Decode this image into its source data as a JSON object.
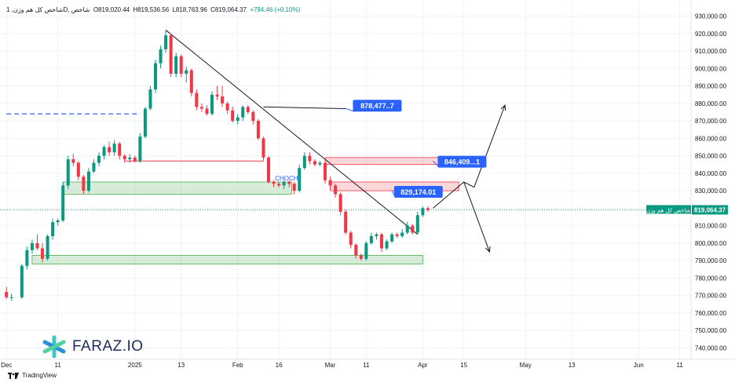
{
  "header": {
    "symbol": "شاخص کل هم وزن, 1D, شاخص",
    "open": "O819,020.44",
    "high": "H819,536.56",
    "low": "L818,763.96",
    "close": "C819,064.37",
    "change": "+794.46 (+0.10%)"
  },
  "branding": {
    "platform": "TradingView",
    "logo_text": "FARAZ.IO"
  },
  "colors": {
    "up": "#089981",
    "down": "#f23645",
    "trendline": "#131722",
    "callout": "#2962ff",
    "support_zone": "#4caf50",
    "resistance_zone": "#f23645"
  },
  "chart_data": {
    "type": "candlestick",
    "title": "شاخص کل هم وزن",
    "interval": "1D",
    "ylim": [
      733000,
      935000
    ],
    "y_ticks": [
      740000,
      750000,
      760000,
      770000,
      780000,
      790000,
      800000,
      810000,
      820000,
      830000,
      840000,
      850000,
      860000,
      870000,
      880000,
      890000,
      900000,
      910000,
      920000,
      930000
    ],
    "y_tick_labels": [
      "740,000.00",
      "750,000.00",
      "760,000.00",
      "770,000.00",
      "780,000.00",
      "790,000.00",
      "800,000.00",
      "810,000.00",
      "820,000.00",
      "830,000.00",
      "840,000.00",
      "850,000.00",
      "860,000.00",
      "870,000.00",
      "880,000.00",
      "890,000.00",
      "900,000.00",
      "910,000.00",
      "920,000.00",
      "930,000.00"
    ],
    "x_labels": [
      {
        "day": 0,
        "text": "Dec"
      },
      {
        "day": 10,
        "text": "11"
      },
      {
        "day": 25,
        "text": "2025"
      },
      {
        "day": 34,
        "text": "13"
      },
      {
        "day": 45,
        "text": "Feb"
      },
      {
        "day": 53,
        "text": "16"
      },
      {
        "day": 63,
        "text": "Mar"
      },
      {
        "day": 70,
        "text": "11"
      },
      {
        "day": 81,
        "text": "Apr"
      },
      {
        "day": 89,
        "text": "15"
      },
      {
        "day": 101,
        "text": "May"
      },
      {
        "day": 110,
        "text": "13"
      },
      {
        "day": 123,
        "text": "Jun"
      },
      {
        "day": 131,
        "text": "11"
      }
    ],
    "candles": [
      [
        0,
        772000,
        775000,
        768000,
        769000
      ],
      [
        1,
        769000,
        771000,
        767000,
        769000
      ],
      [
        3,
        769000,
        788000,
        768000,
        787000
      ],
      [
        4,
        787000,
        798000,
        785000,
        796000
      ],
      [
        5,
        796000,
        802000,
        794000,
        800000
      ],
      [
        6,
        800000,
        805000,
        796000,
        797000
      ],
      [
        7,
        797000,
        800000,
        789000,
        791000
      ],
      [
        8,
        791000,
        805000,
        790000,
        804000
      ],
      [
        9,
        804000,
        814000,
        802000,
        812000
      ],
      [
        10,
        812000,
        814000,
        810000,
        813000
      ],
      [
        11,
        813000,
        835000,
        812000,
        833000
      ],
      [
        12,
        833000,
        850000,
        831000,
        848000
      ],
      [
        13,
        848000,
        851000,
        844000,
        846000
      ],
      [
        14,
        846000,
        847000,
        836000,
        838000
      ],
      [
        15,
        838000,
        839000,
        828000,
        830000
      ],
      [
        16,
        830000,
        843000,
        829000,
        841000
      ],
      [
        17,
        841000,
        848000,
        840000,
        846000
      ],
      [
        18,
        846000,
        852000,
        844000,
        850000
      ],
      [
        19,
        850000,
        856000,
        848000,
        855000
      ],
      [
        20,
        855000,
        858000,
        850000,
        852000
      ],
      [
        21,
        852000,
        859000,
        850000,
        857000
      ],
      [
        22,
        857000,
        858000,
        848000,
        850000
      ],
      [
        23,
        850000,
        851000,
        846000,
        848000
      ],
      [
        24,
        848000,
        851000,
        846000,
        849000
      ],
      [
        25,
        849000,
        850000,
        846000,
        847000
      ],
      [
        26,
        847000,
        863000,
        846000,
        861000
      ],
      [
        27,
        861000,
        878000,
        860000,
        877000
      ],
      [
        28,
        877000,
        890000,
        876000,
        888000
      ],
      [
        29,
        888000,
        905000,
        886000,
        903000
      ],
      [
        30,
        903000,
        913000,
        900000,
        911000
      ],
      [
        31,
        911000,
        922000,
        909000,
        919000
      ],
      [
        32,
        919000,
        920000,
        895000,
        897000
      ],
      [
        33,
        897000,
        909000,
        895000,
        907000
      ],
      [
        34,
        907000,
        908000,
        895000,
        897000
      ],
      [
        35,
        897000,
        901000,
        892000,
        899000
      ],
      [
        36,
        899000,
        900000,
        884000,
        886000
      ],
      [
        37,
        886000,
        888000,
        876000,
        878000
      ],
      [
        38,
        878000,
        880000,
        875000,
        877000
      ],
      [
        39,
        877000,
        879000,
        873000,
        874000
      ],
      [
        40,
        874000,
        887000,
        873000,
        885000
      ],
      [
        41,
        885000,
        890000,
        882000,
        884000
      ],
      [
        42,
        884000,
        890000,
        878000,
        880000
      ],
      [
        43,
        880000,
        881000,
        874000,
        876000
      ],
      [
        44,
        876000,
        878000,
        869000,
        870000
      ],
      [
        45,
        870000,
        874000,
        868000,
        872000
      ],
      [
        46,
        872000,
        879000,
        870000,
        878000
      ],
      [
        47,
        878000,
        879000,
        874000,
        875000
      ],
      [
        48,
        875000,
        876000,
        868000,
        870000
      ],
      [
        49,
        870000,
        871000,
        859000,
        860000
      ],
      [
        50,
        860000,
        861000,
        847000,
        849000
      ],
      [
        51,
        849000,
        850000,
        834000,
        835000
      ],
      [
        52,
        835000,
        836000,
        832000,
        834000
      ],
      [
        53,
        834000,
        835000,
        832000,
        833000
      ],
      [
        54,
        833000,
        836000,
        831000,
        835000
      ],
      [
        55,
        835000,
        836000,
        832000,
        834000
      ],
      [
        56,
        834000,
        835000,
        828000,
        830000
      ],
      [
        57,
        830000,
        845000,
        829000,
        843000
      ],
      [
        58,
        843000,
        852000,
        842000,
        850000
      ],
      [
        59,
        850000,
        852000,
        845000,
        847000
      ],
      [
        60,
        847000,
        848000,
        844000,
        845000
      ],
      [
        61,
        845000,
        847000,
        844000,
        846000
      ],
      [
        62,
        846000,
        847000,
        834000,
        836000
      ],
      [
        63,
        836000,
        838000,
        831000,
        833000
      ],
      [
        64,
        833000,
        834000,
        826000,
        828000
      ],
      [
        65,
        828000,
        829000,
        816000,
        818000
      ],
      [
        66,
        818000,
        819000,
        805000,
        806000
      ],
      [
        67,
        806000,
        807000,
        797000,
        799000
      ],
      [
        68,
        799000,
        800000,
        791000,
        793000
      ],
      [
        69,
        793000,
        794000,
        790000,
        791000
      ],
      [
        70,
        791000,
        801000,
        790000,
        800000
      ],
      [
        71,
        800000,
        806000,
        799000,
        804000
      ],
      [
        72,
        804000,
        806000,
        802000,
        805000
      ],
      [
        73,
        805000,
        806000,
        795000,
        797000
      ],
      [
        74,
        797000,
        802000,
        796000,
        801000
      ],
      [
        75,
        801000,
        806000,
        800000,
        805000
      ],
      [
        76,
        805000,
        806000,
        803000,
        804000
      ],
      [
        77,
        804000,
        808000,
        803000,
        806000
      ],
      [
        78,
        806000,
        812000,
        805000,
        810000
      ],
      [
        79,
        810000,
        811000,
        805000,
        806000
      ],
      [
        80,
        806000,
        818000,
        805000,
        816000
      ],
      [
        81,
        816000,
        821000,
        815000,
        820000
      ],
      [
        82,
        820000,
        821000,
        818000,
        819000
      ]
    ],
    "support_zones": [
      {
        "x0": 11,
        "x1": 55.5,
        "y0": 828000,
        "y1": 835000
      },
      {
        "x0": 5,
        "x1": 81,
        "y0": 788000,
        "y1": 793000
      }
    ],
    "resistance_zones": [
      {
        "x0": 62,
        "x1": 85.5,
        "y0": 845000,
        "y1": 849000
      },
      {
        "x0": 63,
        "x1": 88,
        "y0": 830000,
        "y1": 835000
      }
    ],
    "level_lines": [
      {
        "x0": 0,
        "x1": 26,
        "y": 874000,
        "style": "dashed-blue"
      },
      {
        "x0": 23,
        "x1": 50,
        "y": 847000,
        "style": "red"
      }
    ],
    "trendline": {
      "x0": 31,
      "y0": 922000,
      "x1": 80,
      "y1": 805000
    },
    "projection_up": [
      [
        83,
        820000
      ],
      [
        89,
        835000
      ],
      [
        91,
        832000
      ],
      [
        97,
        879000
      ]
    ],
    "projection_down": [
      [
        89,
        835000
      ],
      [
        94,
        795000
      ]
    ],
    "current_price": {
      "value": 819064.37,
      "label": "819,064.37",
      "name": "شاخص کل هم وزن"
    },
    "annotations": [
      {
        "text": "878,477..7",
        "anchor": [
          66,
          877000
        ]
      },
      {
        "text": "846,409...1",
        "anchor": [
          83,
          847000
        ]
      },
      {
        "text": "829,174.01",
        "anchor": [
          75,
          830000
        ]
      },
      {
        "text": "CHOCH",
        "anchor": [
          54.5,
          835000
        ]
      }
    ]
  }
}
